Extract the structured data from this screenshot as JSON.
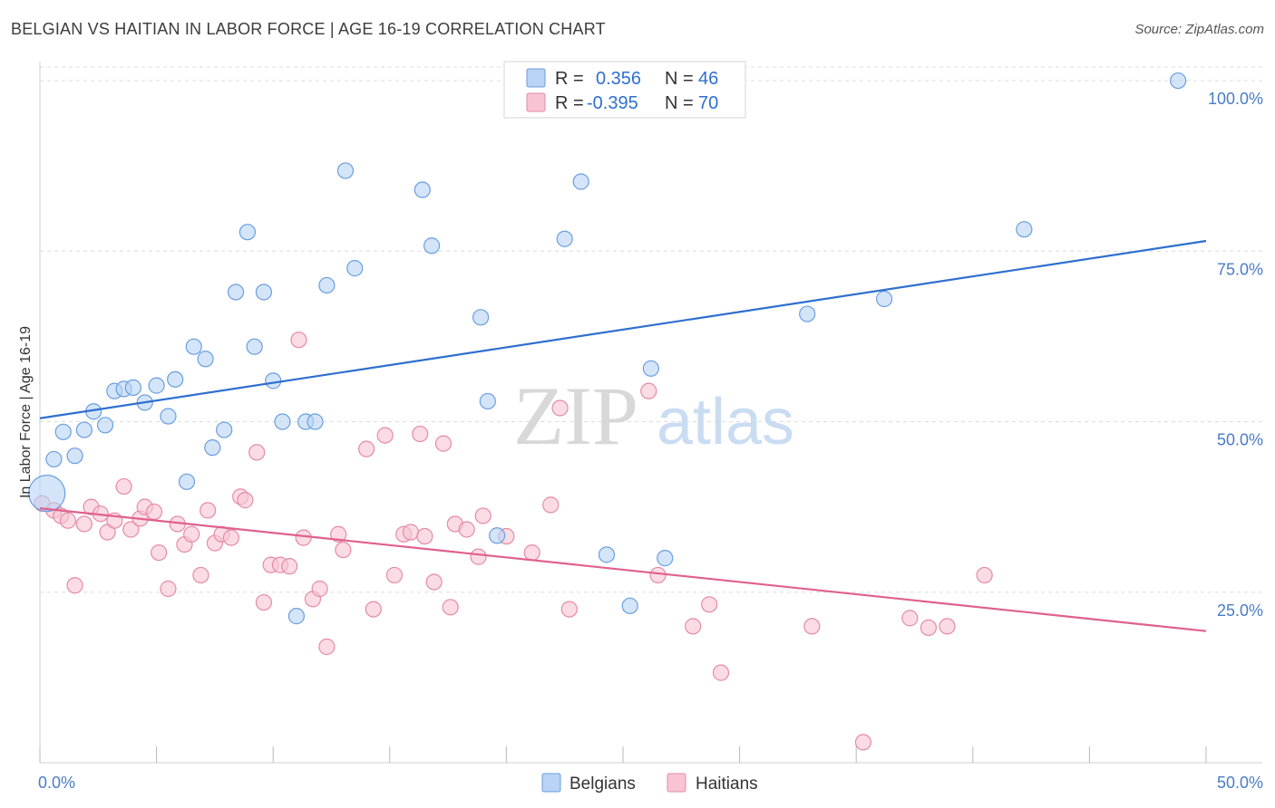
{
  "header": {
    "title": "BELGIAN VS HAITIAN IN LABOR FORCE | AGE 16-19 CORRELATION CHART",
    "source": "Source: ZipAtlas.com"
  },
  "legend": {
    "rows": [
      {
        "r_label": "R =",
        "r_value": "0.356",
        "n_label": "N =",
        "n_value": "46",
        "fill": "#b8d3f5",
        "stroke": "#6a9ee0"
      },
      {
        "r_label": "R =",
        "r_value": "-0.395",
        "n_label": "N =",
        "n_value": "70",
        "fill": "#f8c4d3",
        "stroke": "#e58aa7"
      }
    ]
  },
  "watermark": {
    "zip": "ZIP",
    "atlas": "atlas"
  },
  "colors": {
    "belgian_fill": "#b8d3f5",
    "belgian_stroke": "#6a9ee0",
    "belgian_line": "#2f6fd0",
    "haitian_fill": "#f8c4d3",
    "haitian_stroke": "#e58aa7",
    "haitian_line": "#e0608e"
  },
  "chart_data": {
    "type": "scatter",
    "ylabel": "In Labor Force | Age 16-19",
    "xlim": [
      0,
      50
    ],
    "ylim": [
      0,
      102
    ],
    "x_tick_labels": [
      "0.0%",
      "50.0%"
    ],
    "y_ticks": [
      25,
      50,
      75,
      100
    ],
    "y_tick_labels": [
      "25.0%",
      "50.0%",
      "75.0%",
      "100.0%"
    ],
    "grid": "horizontal dashed",
    "legend_placement": "top-center",
    "bottom_legend": [
      "Belgians",
      "Haitians"
    ],
    "series": [
      {
        "name": "Belgians",
        "trend": {
          "x": [
            0,
            50
          ],
          "y": [
            50.5,
            76.5
          ]
        },
        "points": [
          [
            0.3,
            39.5
          ],
          [
            0.6,
            44.5
          ],
          [
            1.0,
            48.5
          ],
          [
            1.5,
            45.0
          ],
          [
            1.9,
            48.8
          ],
          [
            2.3,
            51.5
          ],
          [
            2.8,
            49.5
          ],
          [
            3.2,
            54.5
          ],
          [
            3.6,
            54.8
          ],
          [
            4.0,
            55.0
          ],
          [
            4.5,
            52.8
          ],
          [
            5.0,
            55.3
          ],
          [
            5.5,
            50.8
          ],
          [
            5.8,
            56.2
          ],
          [
            6.3,
            41.2
          ],
          [
            6.6,
            61.0
          ],
          [
            7.1,
            59.2
          ],
          [
            7.4,
            46.2
          ],
          [
            7.9,
            48.8
          ],
          [
            8.4,
            69.0
          ],
          [
            8.9,
            77.8
          ],
          [
            9.2,
            61.0
          ],
          [
            9.6,
            69.0
          ],
          [
            10.0,
            56.0
          ],
          [
            10.4,
            50.0
          ],
          [
            11.0,
            21.5
          ],
          [
            11.4,
            50.0
          ],
          [
            11.8,
            50.0
          ],
          [
            12.3,
            70.0
          ],
          [
            13.1,
            86.8
          ],
          [
            13.5,
            72.5
          ],
          [
            16.4,
            84.0
          ],
          [
            16.8,
            75.8
          ],
          [
            18.9,
            65.3
          ],
          [
            19.2,
            53.0
          ],
          [
            19.6,
            33.3
          ],
          [
            22.5,
            76.8
          ],
          [
            23.2,
            85.2
          ],
          [
            24.3,
            30.5
          ],
          [
            25.3,
            23.0
          ],
          [
            26.2,
            57.8
          ],
          [
            26.8,
            30.0
          ],
          [
            32.9,
            65.8
          ],
          [
            36.2,
            68.0
          ],
          [
            42.2,
            78.2
          ],
          [
            48.8,
            100.0
          ]
        ]
      },
      {
        "name": "Haitians",
        "trend": {
          "x": [
            0,
            50
          ],
          "y": [
            37.3,
            19.3
          ]
        },
        "points": [
          [
            0.1,
            38.0
          ],
          [
            0.6,
            37.0
          ],
          [
            0.9,
            36.2
          ],
          [
            1.2,
            35.5
          ],
          [
            1.5,
            26.0
          ],
          [
            1.9,
            35.0
          ],
          [
            2.2,
            37.5
          ],
          [
            2.6,
            36.5
          ],
          [
            2.9,
            33.8
          ],
          [
            3.2,
            35.5
          ],
          [
            3.6,
            40.5
          ],
          [
            3.9,
            34.2
          ],
          [
            4.3,
            35.8
          ],
          [
            4.5,
            37.5
          ],
          [
            4.9,
            36.8
          ],
          [
            5.1,
            30.8
          ],
          [
            5.5,
            25.5
          ],
          [
            5.9,
            35.0
          ],
          [
            6.2,
            32.0
          ],
          [
            6.5,
            33.5
          ],
          [
            6.9,
            27.5
          ],
          [
            7.2,
            37.0
          ],
          [
            7.5,
            32.2
          ],
          [
            7.8,
            33.5
          ],
          [
            8.2,
            33.0
          ],
          [
            8.6,
            39.0
          ],
          [
            8.8,
            38.5
          ],
          [
            9.3,
            45.5
          ],
          [
            9.6,
            23.5
          ],
          [
            9.9,
            29.0
          ],
          [
            10.3,
            29.0
          ],
          [
            10.7,
            28.8
          ],
          [
            11.1,
            62.0
          ],
          [
            11.3,
            33.0
          ],
          [
            11.7,
            24.0
          ],
          [
            12.0,
            25.5
          ],
          [
            12.3,
            17.0
          ],
          [
            12.8,
            33.5
          ],
          [
            13.0,
            31.2
          ],
          [
            14.0,
            46.0
          ],
          [
            14.3,
            22.5
          ],
          [
            14.8,
            48.0
          ],
          [
            15.2,
            27.5
          ],
          [
            15.6,
            33.5
          ],
          [
            15.9,
            33.8
          ],
          [
            16.3,
            48.2
          ],
          [
            16.5,
            33.2
          ],
          [
            16.9,
            26.5
          ],
          [
            17.3,
            46.8
          ],
          [
            17.6,
            22.8
          ],
          [
            17.8,
            35.0
          ],
          [
            18.3,
            34.2
          ],
          [
            18.8,
            30.2
          ],
          [
            19.0,
            36.2
          ],
          [
            20.0,
            33.2
          ],
          [
            21.1,
            30.8
          ],
          [
            21.9,
            37.8
          ],
          [
            22.3,
            52.0
          ],
          [
            22.7,
            22.5
          ],
          [
            26.1,
            54.5
          ],
          [
            26.5,
            27.5
          ],
          [
            28.0,
            20.0
          ],
          [
            28.7,
            23.2
          ],
          [
            29.2,
            13.2
          ],
          [
            33.1,
            20.0
          ],
          [
            35.3,
            3.0
          ],
          [
            37.3,
            21.2
          ],
          [
            38.1,
            19.8
          ],
          [
            38.9,
            20.0
          ],
          [
            40.5,
            27.5
          ]
        ]
      }
    ]
  }
}
